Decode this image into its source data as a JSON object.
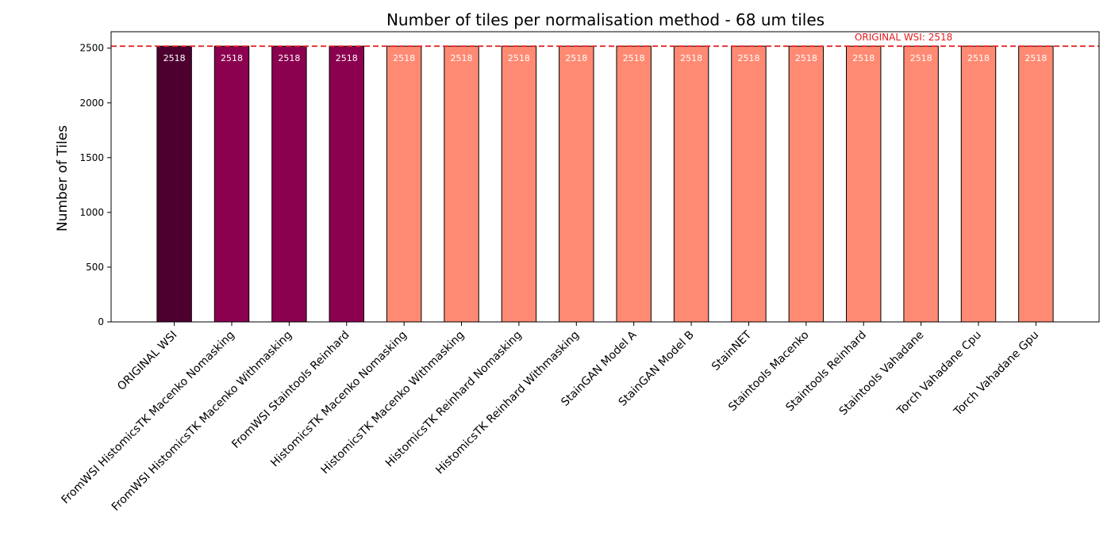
{
  "chart_data": {
    "type": "bar",
    "title": "Number of tiles per normalisation method - 68 um tiles",
    "xlabel": "",
    "ylabel": "Number of Tiles",
    "ylim": [
      0,
      2650
    ],
    "yticks": [
      0,
      500,
      1000,
      1500,
      2000,
      2500
    ],
    "grid": false,
    "categories": [
      "ORIGINAL WSI",
      "FromWSI HistomicsTK Macenko Nomasking",
      "FromWSI HistomicsTK Macenko Withmasking",
      "FromWSI Staintools Reinhard",
      "HistomicsTK Macenko Nomasking",
      "HistomicsTK Macenko Withmasking",
      "HistomicsTK Reinhard Nomasking",
      "HistomicsTK Reinhard Withmasking",
      "StainGAN Model A",
      "StainGAN Model B",
      "StainNET",
      "Staintools Macenko",
      "Staintools Reinhard",
      "Staintools Vahadane",
      "Torch Vahadane Cpu",
      "Torch Vahadane Gpu"
    ],
    "values": [
      2518,
      2518,
      2518,
      2518,
      2518,
      2518,
      2518,
      2518,
      2518,
      2518,
      2518,
      2518,
      2518,
      2518,
      2518,
      2518
    ],
    "data_labels": [
      "2518",
      "2518",
      "2518",
      "2518",
      "2518",
      "2518",
      "2518",
      "2518",
      "2518",
      "2518",
      "2518",
      "2518",
      "2518",
      "2518",
      "2518",
      "2518"
    ],
    "bar_colors": [
      "#4d0030",
      "#8b004f",
      "#8b004f",
      "#8b004f",
      "#ff8a73",
      "#ff8a73",
      "#ff8a73",
      "#ff8a73",
      "#ff8a73",
      "#ff8a73",
      "#ff8a73",
      "#ff8a73",
      "#ff8a73",
      "#ff8a73",
      "#ff8a73",
      "#ff8a73"
    ],
    "reference_line": {
      "value": 2518,
      "label": "ORIGINAL WSI: 2518",
      "color": "#e31a1c"
    }
  }
}
